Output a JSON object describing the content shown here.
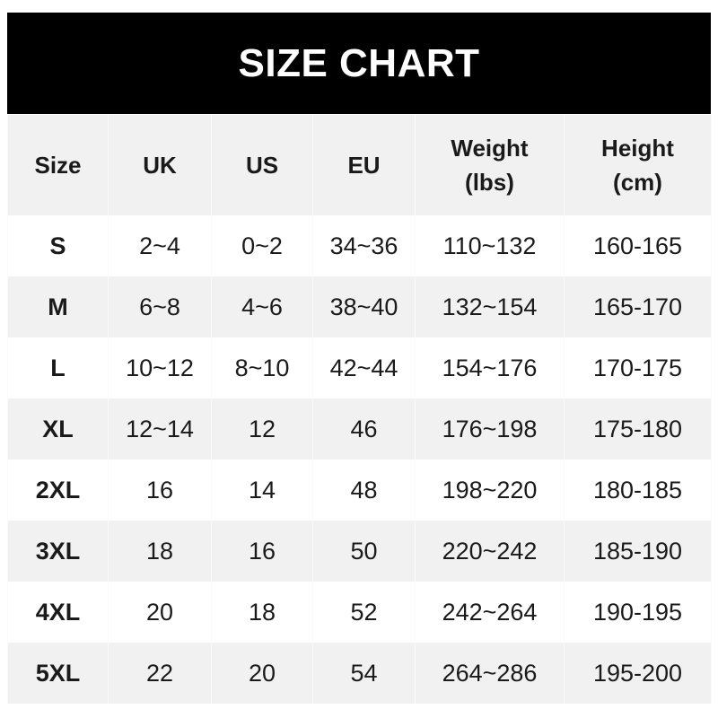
{
  "title": "SIZE CHART",
  "headers": [
    [
      "Size"
    ],
    [
      "UK"
    ],
    [
      "US"
    ],
    [
      "EU"
    ],
    [
      "Weight",
      "(lbs)"
    ],
    [
      "Height",
      "(cm)"
    ]
  ],
  "rows": [
    [
      "S",
      "2~4",
      "0~2",
      "34~36",
      "110~132",
      "160-165"
    ],
    [
      "M",
      "6~8",
      "4~6",
      "38~40",
      "132~154",
      "165-170"
    ],
    [
      "L",
      "10~12",
      "8~10",
      "42~44",
      "154~176",
      "170-175"
    ],
    [
      "XL",
      "12~14",
      "12",
      "46",
      "176~198",
      "175-180"
    ],
    [
      "2XL",
      "16",
      "14",
      "48",
      "198~220",
      "180-185"
    ],
    [
      "3XL",
      "18",
      "16",
      "50",
      "220~242",
      "185-190"
    ],
    [
      "4XL",
      "20",
      "18",
      "52",
      "242~264",
      "190-195"
    ],
    [
      "5XL",
      "22",
      "20",
      "54",
      "264~286",
      "195-200"
    ]
  ],
  "colors": {
    "banner": "#000000",
    "stripe": "#f1f1f1"
  }
}
